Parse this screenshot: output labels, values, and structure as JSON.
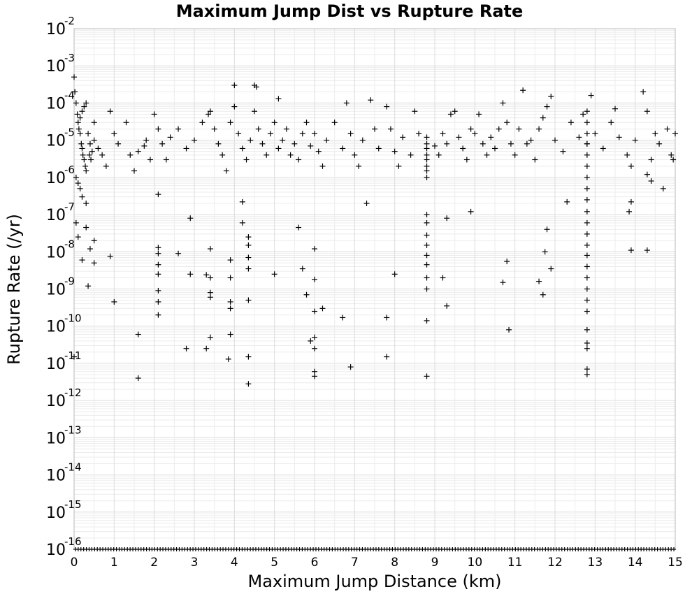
{
  "chart_data": {
    "type": "scatter",
    "title": "Maximum Jump Dist vs Rupture Rate",
    "xlabel": "Maximum Jump Distance (km)",
    "ylabel": "Rupture Rate (/yr)",
    "xlim": [
      0,
      15
    ],
    "ylim": [
      1e-16,
      0.01
    ],
    "yscale": "log",
    "grid": true,
    "marker": "+",
    "colors": {
      "marker": "#000000",
      "grid": "#dcdcdc"
    },
    "x_ticks": [
      "0",
      "1",
      "2",
      "3",
      "4",
      "5",
      "6",
      "7",
      "8",
      "9",
      "10",
      "11",
      "12",
      "13",
      "14",
      "15"
    ],
    "y_ticks": [
      {
        "base": "10",
        "exp": "-2"
      },
      {
        "base": "10",
        "exp": "-3"
      },
      {
        "base": "10",
        "exp": "-4"
      },
      {
        "base": "10",
        "exp": "-5"
      },
      {
        "base": "10",
        "exp": "-6"
      },
      {
        "base": "10",
        "exp": "-7"
      },
      {
        "base": "10",
        "exp": "-8"
      },
      {
        "base": "10",
        "exp": "-9"
      },
      {
        "base": "10",
        "exp": "-10"
      },
      {
        "base": "10",
        "exp": "-11"
      },
      {
        "base": "10",
        "exp": "-12"
      },
      {
        "base": "10",
        "exp": "-13"
      },
      {
        "base": "10",
        "exp": "-14"
      },
      {
        "base": "10",
        "exp": "-15"
      },
      {
        "base": "10",
        "exp": "-16"
      }
    ],
    "points": [
      [
        0.0,
        0.0005
      ],
      [
        0.02,
        0.0002
      ],
      [
        0.05,
        0.0001
      ],
      [
        0.08,
        5e-05
      ],
      [
        0.1,
        3e-05
      ],
      [
        0.12,
        2e-05
      ],
      [
        0.15,
        1.5e-05
      ],
      [
        0.18,
        8e-06
      ],
      [
        0.2,
        6e-06
      ],
      [
        0.22,
        4e-06
      ],
      [
        0.25,
        3e-06
      ],
      [
        0.28,
        2e-06
      ],
      [
        0.3,
        1.5e-06
      ],
      [
        0.05,
        1e-06
      ],
      [
        0.1,
        7e-07
      ],
      [
        0.15,
        5e-07
      ],
      [
        0.2,
        3e-07
      ],
      [
        0.3,
        2e-07
      ],
      [
        0.35,
        1.5e-05
      ],
      [
        0.4,
        8e-06
      ],
      [
        0.45,
        5e-06
      ],
      [
        0.38,
        4e-06
      ],
      [
        0.42,
        3e-06
      ],
      [
        0.3,
        0.0001
      ],
      [
        0.25,
        8e-05
      ],
      [
        0.2,
        6e-05
      ],
      [
        0.15,
        4e-05
      ],
      [
        0.5,
        3e-05
      ],
      [
        0.5,
        1e-05
      ],
      [
        0.6,
        6e-06
      ],
      [
        0.7,
        4e-06
      ],
      [
        0.8,
        2e-06
      ],
      [
        0.9,
        6e-05
      ],
      [
        1.0,
        1.5e-05
      ],
      [
        1.1,
        8e-06
      ],
      [
        1.3,
        3e-05
      ],
      [
        1.4,
        4e-06
      ],
      [
        1.5,
        1.5e-06
      ],
      [
        1.6,
        5e-06
      ],
      [
        1.75,
        7e-06
      ],
      [
        1.8,
        1e-05
      ],
      [
        1.9,
        3e-06
      ],
      [
        2.0,
        5e-05
      ],
      [
        2.1,
        2e-05
      ],
      [
        2.2,
        8e-06
      ],
      [
        2.3,
        3e-06
      ],
      [
        2.4,
        1.2e-05
      ],
      [
        2.6,
        2e-05
      ],
      [
        2.8,
        6e-06
      ],
      [
        3.0,
        1e-05
      ],
      [
        3.2,
        3e-05
      ],
      [
        3.35,
        5e-05
      ],
      [
        3.4,
        6e-05
      ],
      [
        3.5,
        2e-05
      ],
      [
        3.6,
        8e-06
      ],
      [
        3.7,
        4e-06
      ],
      [
        3.8,
        1.5e-06
      ],
      [
        3.9,
        3e-05
      ],
      [
        4.0,
        8e-05
      ],
      [
        4.1,
        1.5e-05
      ],
      [
        4.2,
        6e-06
      ],
      [
        4.3,
        3e-06
      ],
      [
        4.4,
        1e-05
      ],
      [
        4.5,
        6e-05
      ],
      [
        4.6,
        2e-05
      ],
      [
        4.7,
        8e-06
      ],
      [
        4.8,
        4e-06
      ],
      [
        4.9,
        1.5e-05
      ],
      [
        5.0,
        3e-05
      ],
      [
        5.1,
        6e-06
      ],
      [
        5.2,
        1e-05
      ],
      [
        5.3,
        2e-05
      ],
      [
        5.4,
        4e-06
      ],
      [
        5.5,
        8e-06
      ],
      [
        5.6,
        3e-06
      ],
      [
        5.7,
        1.5e-05
      ],
      [
        5.8,
        3e-05
      ],
      [
        5.9,
        7e-06
      ],
      [
        6.0,
        1.5e-05
      ],
      [
        6.1,
        5e-06
      ],
      [
        6.2,
        2e-06
      ],
      [
        6.3,
        1e-05
      ],
      [
        6.5,
        3e-05
      ],
      [
        6.7,
        6e-06
      ],
      [
        6.8,
        0.0001
      ],
      [
        6.9,
        1.5e-05
      ],
      [
        7.0,
        4e-06
      ],
      [
        7.1,
        2e-06
      ],
      [
        7.2,
        1e-05
      ],
      [
        7.4,
        0.00012
      ],
      [
        7.5,
        2e-05
      ],
      [
        7.6,
        6e-06
      ],
      [
        7.8,
        8e-05
      ],
      [
        7.9,
        2e-05
      ],
      [
        8.0,
        5e-06
      ],
      [
        8.1,
        2e-06
      ],
      [
        8.2,
        1.2e-05
      ],
      [
        8.4,
        4e-06
      ],
      [
        8.5,
        6e-05
      ],
      [
        8.6,
        1.5e-05
      ],
      [
        8.8,
        6e-06
      ],
      [
        8.8,
        4e-06
      ],
      [
        8.8,
        3e-06
      ],
      [
        8.8,
        2e-06
      ],
      [
        8.8,
        1.5e-06
      ],
      [
        8.8,
        1e-06
      ],
      [
        8.8,
        8e-06
      ],
      [
        8.8,
        1.2e-05
      ],
      [
        9.0,
        7e-06
      ],
      [
        9.1,
        4e-06
      ],
      [
        9.2,
        1.5e-05
      ],
      [
        9.3,
        8e-06
      ],
      [
        9.4,
        5e-05
      ],
      [
        9.5,
        6e-05
      ],
      [
        9.6,
        1.2e-05
      ],
      [
        9.7,
        6e-06
      ],
      [
        9.8,
        3e-06
      ],
      [
        9.9,
        2e-05
      ],
      [
        10.0,
        1.5e-05
      ],
      [
        10.1,
        5e-05
      ],
      [
        10.2,
        8e-06
      ],
      [
        10.3,
        4e-06
      ],
      [
        10.4,
        1.2e-05
      ],
      [
        10.5,
        6e-06
      ],
      [
        10.6,
        2e-05
      ],
      [
        10.7,
        0.0001
      ],
      [
        10.8,
        3e-05
      ],
      [
        10.9,
        8e-06
      ],
      [
        11.0,
        4e-06
      ],
      [
        11.1,
        2e-05
      ],
      [
        11.2,
        0.00022
      ],
      [
        11.3,
        8e-06
      ],
      [
        11.4,
        1e-05
      ],
      [
        11.5,
        3e-06
      ],
      [
        11.6,
        2e-05
      ],
      [
        11.7,
        4e-05
      ],
      [
        11.8,
        8e-05
      ],
      [
        11.9,
        0.00015
      ],
      [
        12.0,
        1e-05
      ],
      [
        12.2,
        5e-06
      ],
      [
        12.4,
        3e-05
      ],
      [
        12.6,
        1.2e-05
      ],
      [
        12.7,
        5e-05
      ],
      [
        12.8,
        8e-06
      ],
      [
        12.9,
        0.00016
      ],
      [
        13.0,
        1.5e-05
      ],
      [
        13.2,
        6e-06
      ],
      [
        13.4,
        3e-05
      ],
      [
        13.5,
        7e-05
      ],
      [
        13.6,
        1.2e-05
      ],
      [
        13.8,
        4e-06
      ],
      [
        13.9,
        2e-06
      ],
      [
        14.0,
        1e-05
      ],
      [
        14.2,
        0.0002
      ],
      [
        14.3,
        6e-05
      ],
      [
        14.4,
        3e-06
      ],
      [
        14.5,
        1.5e-05
      ],
      [
        14.6,
        8e-06
      ],
      [
        14.8,
        2e-05
      ],
      [
        14.9,
        4e-06
      ],
      [
        15.0,
        1.5e-05
      ],
      [
        14.95,
        3e-06
      ],
      [
        14.7,
        5e-07
      ],
      [
        14.4,
        8e-07
      ],
      [
        14.3,
        1.2e-06
      ],
      [
        13.9,
        2.2e-07
      ],
      [
        13.85,
        1.2e-07
      ],
      [
        13.9,
        1.1e-08
      ],
      [
        14.3,
        1.1e-08
      ],
      [
        0.05,
        6e-08
      ],
      [
        0.1,
        2.5e-08
      ],
      [
        0.2,
        6e-09
      ],
      [
        0.3,
        4.5e-08
      ],
      [
        0.4,
        1.2e-08
      ],
      [
        0.5,
        2e-08
      ],
      [
        0.5,
        5e-09
      ],
      [
        0.35,
        1.2e-09
      ],
      [
        0.9,
        7.5e-09
      ],
      [
        1.0,
        4.5e-10
      ],
      [
        0.0,
        1.5e-11
      ],
      [
        1.6,
        6e-11
      ],
      [
        1.6,
        4e-12
      ],
      [
        2.1,
        1.3e-08
      ],
      [
        2.1,
        9e-09
      ],
      [
        2.1,
        4.5e-09
      ],
      [
        2.1,
        2.5e-09
      ],
      [
        2.1,
        9e-10
      ],
      [
        2.1,
        4.5e-10
      ],
      [
        2.1,
        2e-10
      ],
      [
        2.1,
        3.5e-07
      ],
      [
        2.6,
        9e-09
      ],
      [
        2.9,
        2.5e-09
      ],
      [
        2.8,
        2.5e-11
      ],
      [
        2.9,
        8e-08
      ],
      [
        3.3,
        2.4e-09
      ],
      [
        3.3,
        2.5e-11
      ],
      [
        3.4,
        1.2e-08
      ],
      [
        3.4,
        8e-10
      ],
      [
        3.4,
        6e-10
      ],
      [
        3.4,
        5e-11
      ],
      [
        3.4,
        2e-09
      ],
      [
        3.9,
        6e-09
      ],
      [
        3.9,
        2e-09
      ],
      [
        3.9,
        4.5e-10
      ],
      [
        3.9,
        3e-10
      ],
      [
        3.9,
        6e-11
      ],
      [
        3.85,
        1.3e-11
      ],
      [
        4.2,
        2.2e-07
      ],
      [
        4.2,
        6e-08
      ],
      [
        4.35,
        2.5e-08
      ],
      [
        4.35,
        1.5e-08
      ],
      [
        4.35,
        7e-09
      ],
      [
        4.35,
        3.5e-09
      ],
      [
        4.35,
        5e-10
      ],
      [
        4.35,
        1.5e-11
      ],
      [
        4.35,
        2.8e-12
      ],
      [
        4.0,
        0.0003
      ],
      [
        4.5,
        0.0003
      ],
      [
        4.55,
        0.00027
      ],
      [
        5.0,
        2.5e-09
      ],
      [
        5.1,
        0.00013
      ],
      [
        5.6,
        4.5e-08
      ],
      [
        5.7,
        3.5e-09
      ],
      [
        5.8,
        7e-10
      ],
      [
        5.9,
        4e-11
      ],
      [
        6.0,
        1.2e-08
      ],
      [
        6.0,
        1.8e-09
      ],
      [
        6.0,
        2.5e-10
      ],
      [
        6.0,
        5e-11
      ],
      [
        6.0,
        2.5e-11
      ],
      [
        6.0,
        6e-12
      ],
      [
        6.0,
        4.5e-12
      ],
      [
        6.2,
        3e-10
      ],
      [
        6.7,
        1.7e-10
      ],
      [
        6.9,
        8e-12
      ],
      [
        7.3,
        2e-07
      ],
      [
        7.8,
        1.7e-10
      ],
      [
        7.8,
        1.5e-11
      ],
      [
        8.0,
        2.5e-09
      ],
      [
        8.8,
        1e-07
      ],
      [
        8.8,
        6e-08
      ],
      [
        8.8,
        2.8e-08
      ],
      [
        8.8,
        1.5e-08
      ],
      [
        8.8,
        8e-09
      ],
      [
        8.8,
        4.5e-09
      ],
      [
        8.8,
        2e-09
      ],
      [
        8.8,
        1e-09
      ],
      [
        8.8,
        1.4e-10
      ],
      [
        8.8,
        4.5e-12
      ],
      [
        9.2,
        2e-09
      ],
      [
        9.3,
        3.5e-10
      ],
      [
        9.3,
        8e-08
      ],
      [
        9.9,
        1.2e-07
      ],
      [
        10.7,
        1.5e-09
      ],
      [
        10.8,
        5.5e-09
      ],
      [
        10.85,
        8e-11
      ],
      [
        11.6,
        1.6e-09
      ],
      [
        11.7,
        7e-10
      ],
      [
        11.75,
        1e-08
      ],
      [
        11.8,
        4e-08
      ],
      [
        11.9,
        3.5e-09
      ],
      [
        12.3,
        2.2e-07
      ],
      [
        12.8,
        6e-05
      ],
      [
        12.8,
        3e-05
      ],
      [
        12.8,
        1.5e-05
      ],
      [
        12.8,
        8e-06
      ],
      [
        12.8,
        4e-06
      ],
      [
        12.8,
        2e-06
      ],
      [
        12.8,
        1e-06
      ],
      [
        12.8,
        5e-07
      ],
      [
        12.8,
        2.5e-07
      ],
      [
        12.8,
        1.2e-07
      ],
      [
        12.8,
        6e-08
      ],
      [
        12.8,
        3e-08
      ],
      [
        12.8,
        1.5e-08
      ],
      [
        12.8,
        8e-09
      ],
      [
        12.8,
        4e-09
      ],
      [
        12.8,
        2e-09
      ],
      [
        12.8,
        1e-09
      ],
      [
        12.8,
        5e-10
      ],
      [
        12.8,
        2.5e-10
      ],
      [
        12.8,
        8e-11
      ],
      [
        12.8,
        3.5e-11
      ],
      [
        12.8,
        2.5e-11
      ],
      [
        12.8,
        7e-12
      ],
      [
        12.8,
        5e-12
      ]
    ],
    "bottom_point_count": 220
  }
}
